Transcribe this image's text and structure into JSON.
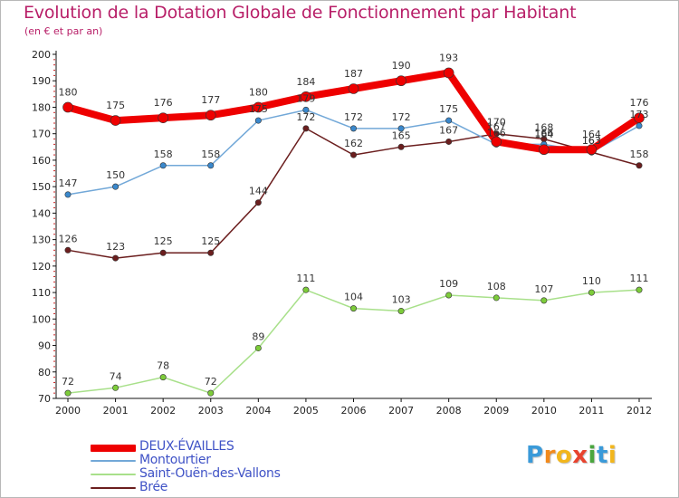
{
  "chart_data": {
    "type": "line",
    "title": "Evolution de la Dotation Globale de Fonctionnement par Habitant",
    "subtitle": "(en € et par an)",
    "xlabel": "",
    "ylabel": "",
    "ylim": [
      70,
      200
    ],
    "yticks": [
      70,
      80,
      90,
      100,
      110,
      120,
      130,
      140,
      150,
      160,
      170,
      180,
      190,
      200
    ],
    "grid": false,
    "legend_position": "bottom-left",
    "categories": [
      "2000",
      "2001",
      "2002",
      "2003",
      "2004",
      "2005",
      "2006",
      "2007",
      "2008",
      "2009",
      "2010",
      "2011",
      "2012"
    ],
    "series": [
      {
        "name": "Brée",
        "color": "#6b1e1e",
        "values": [
          126,
          123,
          125,
          125,
          144,
          172,
          162,
          165,
          167,
          170,
          168,
          163,
          158
        ]
      },
      {
        "name": "Saint-Ouën-des-Vallons",
        "color": "#a8e08a",
        "values": [
          72,
          74,
          78,
          72,
          89,
          111,
          104,
          103,
          109,
          108,
          107,
          110,
          111
        ]
      },
      {
        "name": "Montourtier",
        "color": "#72a8d8",
        "values": [
          147,
          150,
          158,
          158,
          175,
          179,
          172,
          172,
          175,
          166,
          166,
          163,
          173
        ]
      },
      {
        "name": "DEUX-ÉVAILLES",
        "color": "#ee0000",
        "values": [
          180,
          175,
          176,
          177,
          180,
          184,
          187,
          190,
          193,
          167,
          164,
          164,
          176
        ]
      }
    ]
  },
  "legend": {
    "items": [
      {
        "label": "DEUX-ÉVAILLES",
        "color": "#ee0000"
      },
      {
        "label": "Montourtier",
        "color": "#72a8d8"
      },
      {
        "label": "Saint-Ouën-des-Vallons",
        "color": "#a8e08a"
      },
      {
        "label": "Brée",
        "color": "#6b1e1e"
      }
    ]
  },
  "logo": {
    "letters": [
      "P",
      "r",
      "o",
      "x",
      "i",
      "t",
      "i"
    ],
    "colors": [
      "#3a9ad9",
      "#f28a1c",
      "#f2b61c",
      "#e8432e",
      "#4aa63e",
      "#3a9ad9",
      "#f2b61c"
    ]
  }
}
